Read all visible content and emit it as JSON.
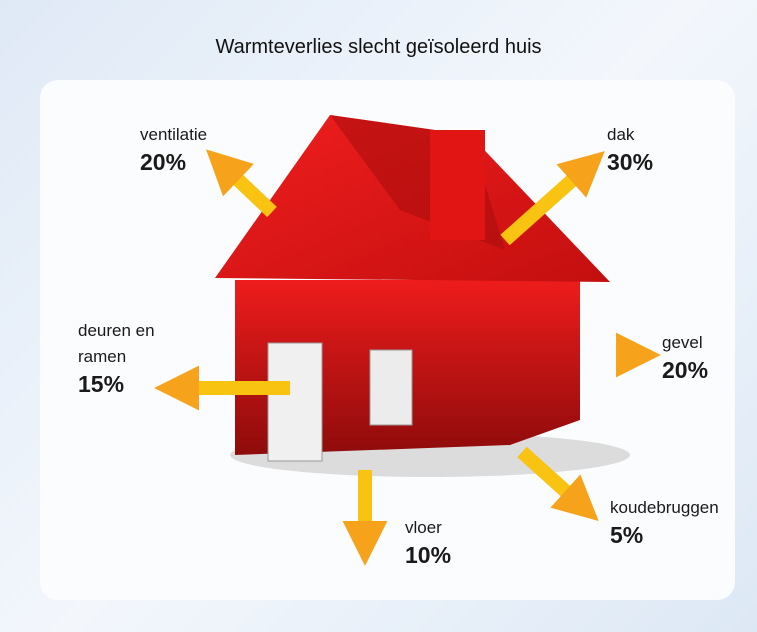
{
  "title": "Warmteverlies slecht geïsoleerd huis",
  "items": [
    {
      "name": "ventilatie",
      "value": "20%"
    },
    {
      "name": "dak",
      "value": "30%"
    },
    {
      "name": "deuren en ramen",
      "value": "15%"
    },
    {
      "name": "gevel",
      "value": "20%"
    },
    {
      "name": "vloer",
      "value": "10%"
    },
    {
      "name": "koudebruggen",
      "value": "5%"
    }
  ]
}
